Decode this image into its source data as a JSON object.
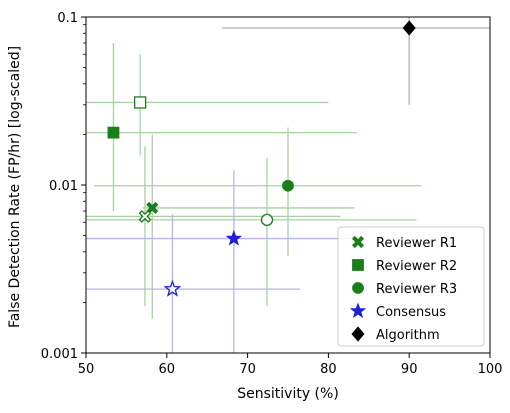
{
  "chart_data": {
    "type": "scatter",
    "xlabel": "Sensitivity (%)",
    "ylabel": "False Detection Rate (FP/hr) [log-scaled]",
    "xlim": [
      50,
      100
    ],
    "ylim": [
      0.001,
      0.1
    ],
    "yscale": "log",
    "x_ticks": [
      50,
      60,
      70,
      80,
      90,
      100
    ],
    "x_tick_labels": [
      "50",
      "60",
      "70",
      "80",
      "90",
      "100"
    ],
    "y_ticks": [
      0.001,
      0.01,
      0.1
    ],
    "y_tick_labels": [
      "0.001",
      "0.01",
      "0.1"
    ],
    "grid": false,
    "legend_position": "bottom-right",
    "legend": [
      {
        "label": "Reviewer R1",
        "marker": "x",
        "color": "#1a7f1a"
      },
      {
        "label": "Reviewer R2",
        "marker": "square",
        "color": "#1a7f1a"
      },
      {
        "label": "Reviewer R3",
        "marker": "circle",
        "color": "#1a7f1a"
      },
      {
        "label": "Consensus",
        "marker": "star",
        "color": "#1f1fd6"
      },
      {
        "label": "Algorithm",
        "marker": "diamond",
        "color": "#000000"
      }
    ],
    "series": [
      {
        "name": "Reviewer R1",
        "marker": "x",
        "color": "#1a7f1a",
        "err_color": "#a9cfa4",
        "points": [
          {
            "x": 58.2,
            "y": 0.0073,
            "filled": true,
            "xerr": [
              57.0,
              83.2
            ],
            "yerr": [
              0.0016,
              0.02
            ]
          },
          {
            "x": 57.3,
            "y": 0.0065,
            "filled": false,
            "xerr": [
              50.0,
              81.5
            ],
            "yerr": [
              0.0019,
              0.017
            ]
          }
        ]
      },
      {
        "name": "Reviewer R2",
        "marker": "square",
        "color": "#1a7f1a",
        "err_color": "#a9cfa4",
        "points": [
          {
            "x": 53.4,
            "y": 0.0205,
            "filled": true,
            "xerr": [
              50.0,
              83.5
            ],
            "yerr": [
              0.007,
              0.07
            ]
          },
          {
            "x": 56.7,
            "y": 0.031,
            "filled": false,
            "xerr": [
              50.0,
              80.0
            ],
            "yerr": [
              0.015,
              0.06
            ]
          }
        ]
      },
      {
        "name": "Reviewer R3",
        "marker": "circle",
        "color": "#1a7f1a",
        "err_color": "#a9cfa4",
        "points": [
          {
            "x": 75.0,
            "y": 0.0099,
            "filled": true,
            "xerr": [
              51.0,
              91.5
            ],
            "yerr": [
              0.0038,
              0.022
            ]
          },
          {
            "x": 72.4,
            "y": 0.0062,
            "filled": false,
            "xerr": [
              50.0,
              90.9
            ],
            "yerr": [
              0.0019,
              0.0145
            ]
          }
        ]
      },
      {
        "name": "Consensus",
        "marker": "star",
        "color": "#1f1fd6",
        "err_color": "#b5b5e6",
        "points": [
          {
            "x": 68.3,
            "y": 0.0048,
            "filled": true,
            "xerr": [
              50.0,
              84.0
            ],
            "yerr": [
              0.001,
              0.0122
            ]
          },
          {
            "x": 60.7,
            "y": 0.0024,
            "filled": false,
            "xerr": [
              50.0,
              76.5
            ],
            "yerr": [
              0.001,
              0.0067
            ]
          }
        ]
      },
      {
        "name": "Algorithm",
        "marker": "diamond",
        "color": "#000000",
        "err_color": "#b3b3b3",
        "points": [
          {
            "x": 90.0,
            "y": 0.086,
            "filled": true,
            "xerr": [
              66.8,
              100.0
            ],
            "yerr": [
              0.03,
              0.1
            ]
          }
        ]
      }
    ]
  }
}
